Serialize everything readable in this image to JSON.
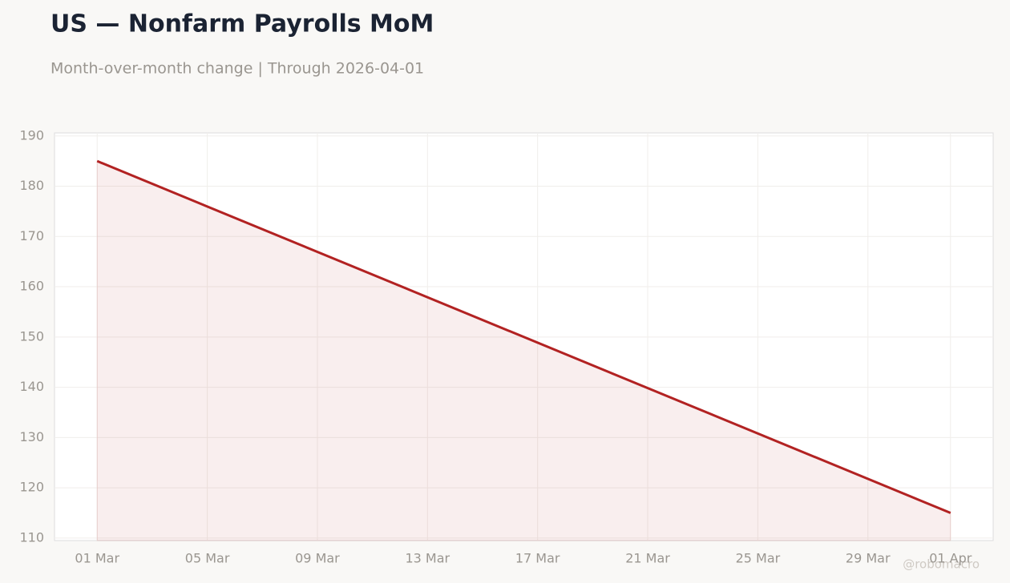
{
  "chart_data": {
    "type": "line",
    "title": "US — Nonfarm Payrolls MoM",
    "subtitle": "Month-over-month change | Through 2026-04-01",
    "x": [
      "01 Mar",
      "01 Apr"
    ],
    "series": [
      {
        "name": "Nonfarm Payrolls MoM",
        "color": "#b22222",
        "values": [
          185,
          115
        ]
      }
    ],
    "xticks": [
      "01 Mar",
      "05 Mar",
      "09 Mar",
      "13 Mar",
      "17 Mar",
      "21 Mar",
      "25 Mar",
      "29 Mar",
      "01 Apr"
    ],
    "ylim": [
      109.5,
      190.6
    ],
    "yticks": [
      110,
      120,
      130,
      140,
      150,
      160,
      170,
      180,
      190
    ],
    "grid": true,
    "area": true,
    "watermark": "@robomacro"
  }
}
